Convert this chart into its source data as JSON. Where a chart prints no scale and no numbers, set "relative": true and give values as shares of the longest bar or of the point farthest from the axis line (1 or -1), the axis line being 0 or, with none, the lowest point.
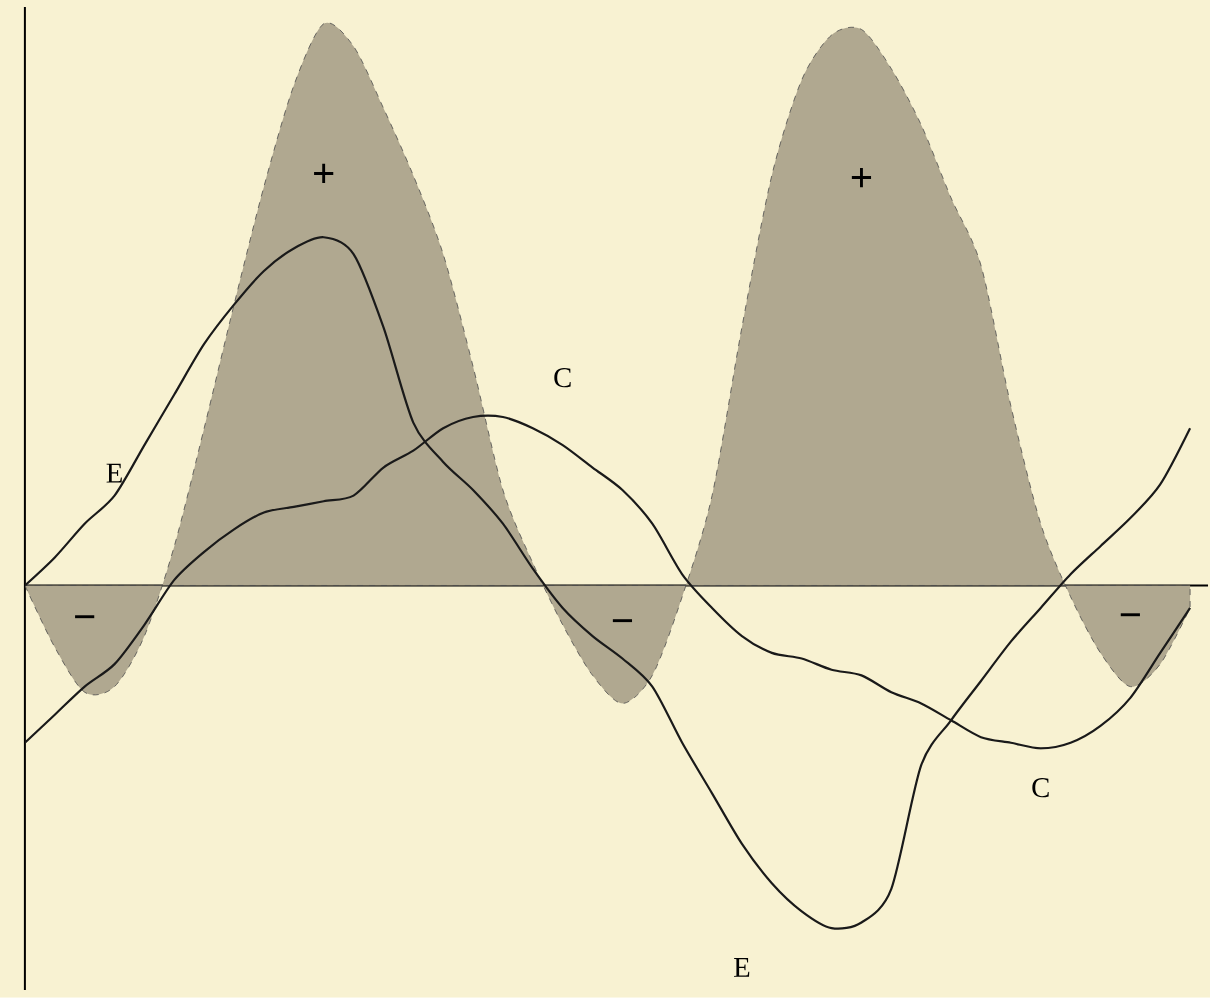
{
  "chart_data": {
    "type": "line",
    "relative": true,
    "categories": [
      null,
      null,
      null,
      null,
      null,
      null,
      null,
      null,
      null,
      null,
      null,
      null,
      null,
      null,
      null,
      null,
      null,
      null,
      null,
      null,
      null,
      null,
      null,
      null,
      null,
      null,
      null,
      null,
      null,
      null,
      null,
      null,
      null,
      null,
      null,
      null,
      null,
      null,
      null,
      null
    ],
    "series": [
      {
        "type": "area",
        "color": "#b0a890",
        "values": [
          0,
          -0.11,
          -0.19,
          -0.18,
          -0.09,
          0.07,
          0.28,
          0.5,
          0.71,
          0.89,
          1,
          0.96,
          0.85,
          0.73,
          0.59,
          0.39,
          0.17,
          0.04,
          -0.07,
          -0.16,
          -0.21,
          -0.16,
          -0.02,
          0.16,
          0.46,
          0.73,
          0.9,
          0.98,
          0.99,
          0.92,
          0.82,
          0.69,
          0.57,
          0.32,
          0.11,
          -0.02,
          -0.12,
          -0.18,
          -0.14,
          -0.04
        ]
      },
      {
        "name": "E",
        "color": "#1a1a1a",
        "values": [
          0,
          0.05,
          0.11,
          0.16,
          0.25,
          0.34,
          0.43,
          0.5,
          0.56,
          0.6,
          0.62,
          0.59,
          0.46,
          0.29,
          0.22,
          0.17,
          0.11,
          0.03,
          -0.04,
          -0.09,
          -0.13,
          -0.18,
          -0.28,
          -0.37,
          -0.46,
          -0.53,
          -0.58,
          -0.61,
          -0.6,
          -0.54,
          -0.32,
          -0.24,
          -0.17,
          -0.1,
          -0.04,
          0.02,
          0.07,
          0.12,
          0.18,
          0.28
        ]
      },
      {
        "name": "C",
        "color": "#1a1a1a",
        "values": [
          -0.28,
          -0.23,
          -0.18,
          -0.14,
          -0.07,
          0.01,
          0.06,
          0.1,
          0.13,
          0.14,
          0.15,
          0.16,
          0.21,
          0.24,
          0.28,
          0.3,
          0.3,
          0.28,
          0.25,
          0.21,
          0.17,
          0.11,
          0.02,
          -0.04,
          -0.09,
          -0.12,
          -0.13,
          -0.15,
          -0.16,
          -0.19,
          -0.21,
          -0.24,
          -0.27,
          -0.28,
          -0.29,
          -0.28,
          -0.25,
          -0.2,
          -0.12,
          -0.04
        ]
      }
    ],
    "annotations": [
      "−",
      "+",
      "−",
      "+",
      "−"
    ]
  }
}
